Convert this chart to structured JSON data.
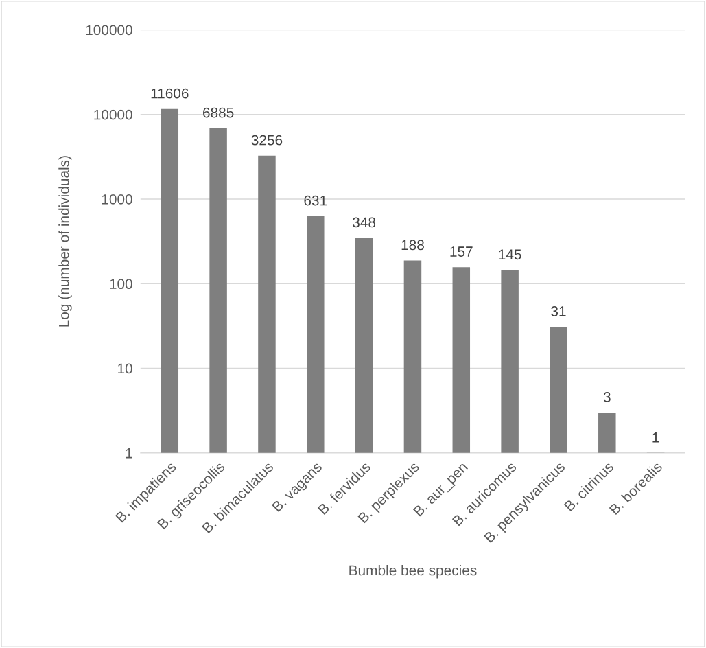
{
  "chart_data": {
    "type": "bar",
    "xlabel": "Bumble bee species",
    "ylabel": "Log (number of individuals)",
    "categories": [
      "B. impatiens",
      "B. griseocollis",
      "B. bimaculatus",
      "B. vagans",
      "B. fervidus",
      "B. perplexus",
      "B. aur_pen",
      "B. auricomus",
      "B. pensylvanicus",
      "B. citrinus",
      "B. borealis"
    ],
    "values": [
      11606,
      6885,
      3256,
      631,
      348,
      188,
      157,
      145,
      31,
      3,
      1
    ],
    "color": "#7f7f7f",
    "log": true,
    "ylim": [
      1,
      100000
    ],
    "yticks": [
      1,
      10,
      100,
      1000,
      10000,
      100000
    ],
    "grid": "y",
    "data_labels": true
  }
}
